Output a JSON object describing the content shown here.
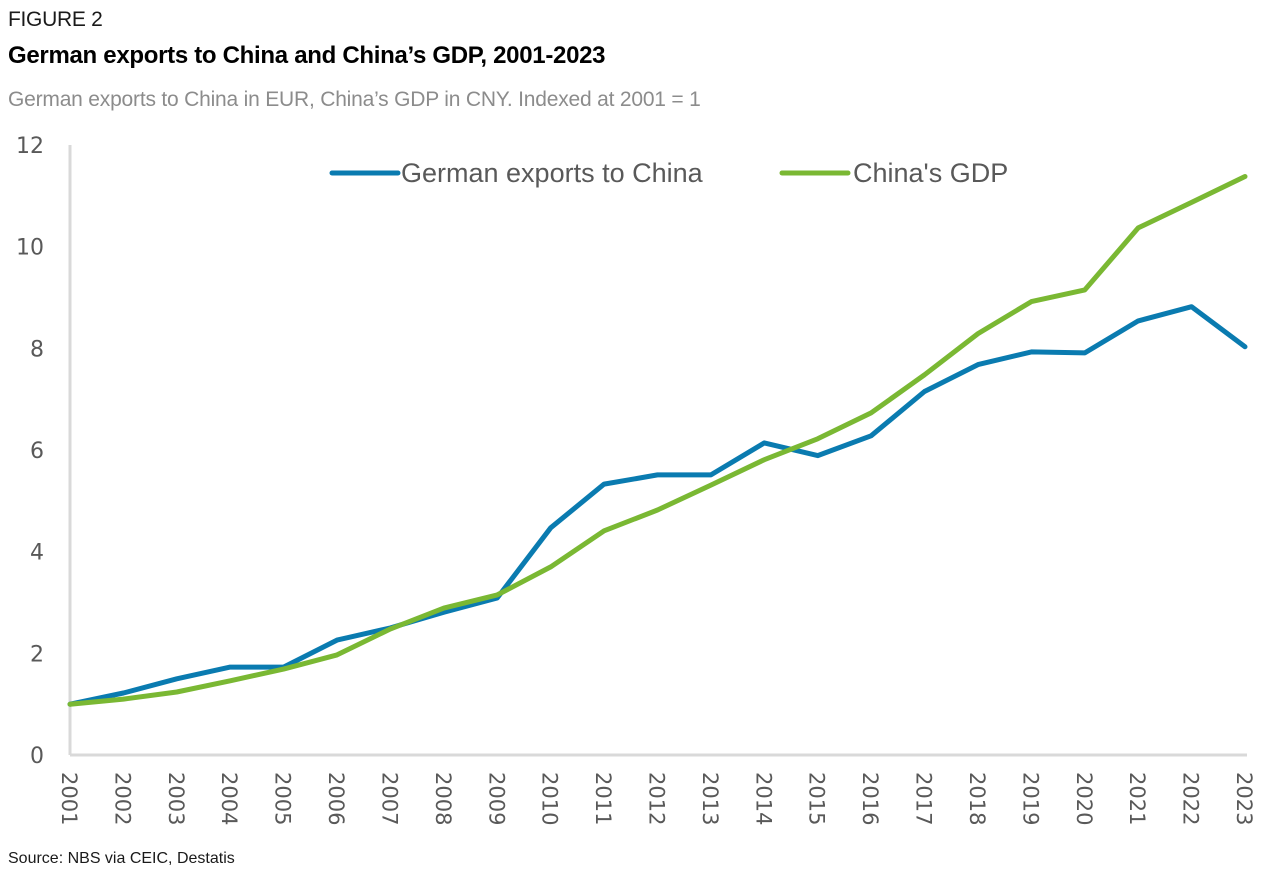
{
  "header": {
    "figure_label": "FIGURE 2",
    "title": "German exports to China and China’s GDP, 2001-2023",
    "subtitle": "German exports to China in EUR, China’s GDP in CNY. Indexed at 2001 = 1"
  },
  "footer": {
    "source": "Source: NBS via CEIC, Destatis"
  },
  "chart_data": {
    "type": "line",
    "title": "German exports to China and China’s GDP, 2001-2023",
    "subtitle": "German exports to China in EUR, China’s GDP in CNY. Indexed at 2001 = 1",
    "xlabel": "",
    "ylabel": "",
    "x": [
      "2001",
      "2002",
      "2003",
      "2004",
      "2005",
      "2006",
      "2007",
      "2008",
      "2009",
      "2010",
      "2011",
      "2012",
      "2013",
      "2014",
      "2015",
      "2016",
      "2017",
      "2018",
      "2019",
      "2020",
      "2021",
      "2022",
      "2023"
    ],
    "ylim": [
      0,
      12
    ],
    "yticks": [
      0,
      2,
      4,
      6,
      8,
      10,
      12
    ],
    "ytick_labels": [
      "0",
      "2",
      "4",
      "6",
      "8",
      "10",
      "12"
    ],
    "grid": false,
    "legend_position": "top-center",
    "series": [
      {
        "name": "German exports to China",
        "color": "#0a7bb0",
        "values": [
          1.0,
          1.22,
          1.5,
          1.73,
          1.73,
          2.26,
          2.5,
          2.81,
          3.09,
          4.47,
          5.33,
          5.51,
          5.51,
          6.14,
          5.89,
          6.28,
          7.15,
          7.68,
          7.93,
          7.91,
          8.54,
          8.82,
          8.03
        ]
      },
      {
        "name": "China's GDP",
        "color": "#7ab833",
        "values": [
          1.0,
          1.1,
          1.24,
          1.46,
          1.69,
          1.97,
          2.48,
          2.89,
          3.15,
          3.7,
          4.41,
          4.82,
          5.31,
          5.81,
          6.22,
          6.73,
          7.48,
          8.29,
          8.92,
          9.15,
          10.37,
          10.87,
          11.38
        ]
      }
    ],
    "axis_color": "#d9d9d9",
    "source": "Source: NBS via CEIC, Destatis"
  }
}
